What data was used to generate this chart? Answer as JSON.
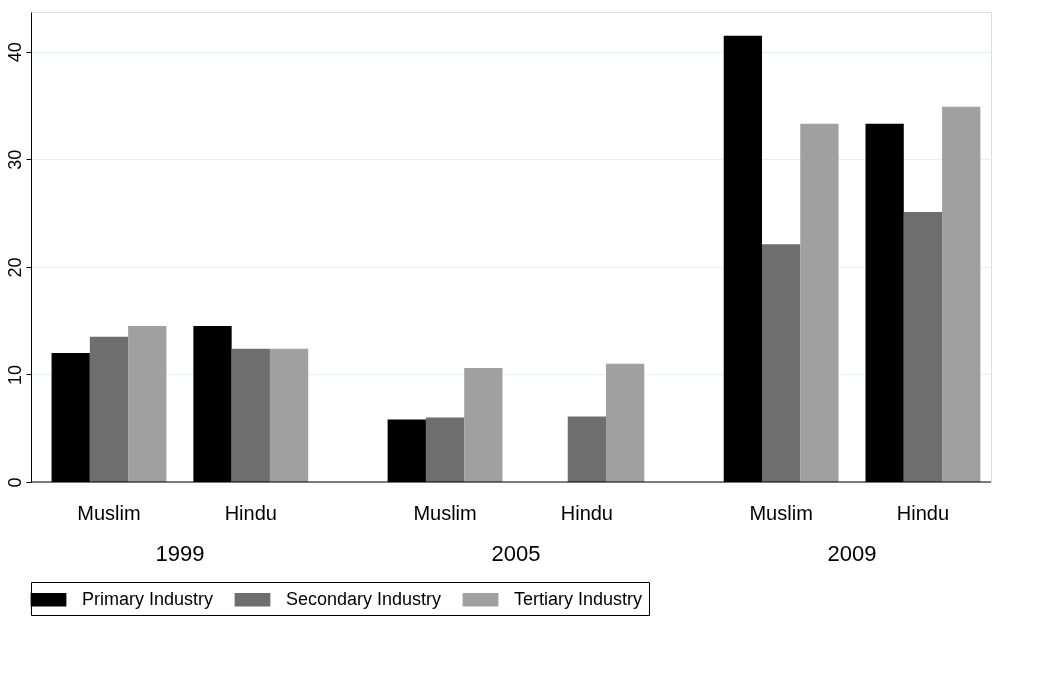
{
  "chart_data": {
    "type": "bar",
    "categories": [
      "Muslim",
      "Hindu",
      "Muslim",
      "Hindu",
      "Muslim",
      "Hindu"
    ],
    "annotations": [
      "1999",
      "2005",
      "2009"
    ],
    "series": [
      {
        "name": "Primary Industry",
        "color": "#000000",
        "values": [
          12.0,
          14.5,
          5.8,
          null,
          41.5,
          33.3
        ]
      },
      {
        "name": "Secondary Industry",
        "color": "#6e6e6e",
        "values": [
          13.5,
          12.4,
          6.0,
          6.1,
          22.1,
          25.1
        ]
      },
      {
        "name": "Tertiary Industry",
        "color": "#a0a0a0",
        "values": [
          14.5,
          12.4,
          10.6,
          11.0,
          33.3,
          34.9
        ]
      }
    ],
    "ylim": [
      0,
      43.7
    ],
    "yticks": [
      0,
      10,
      20,
      30,
      40
    ],
    "grid": "y",
    "legend": "bottom"
  }
}
